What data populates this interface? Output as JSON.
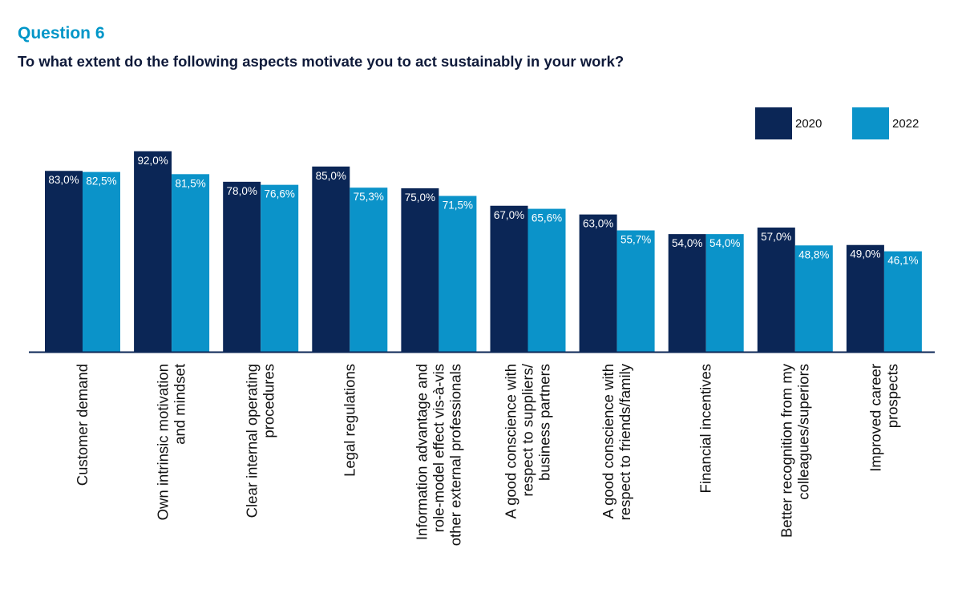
{
  "header": {
    "question_label": "Question 6",
    "question_text": "To what extent do the following aspects motivate you to act sustainably in your work?"
  },
  "colors": {
    "series_2020": "#0b2656",
    "series_2022": "#0b93c9",
    "label_text": "#ffffff",
    "axis": "#0b2656",
    "category_text": "#111111"
  },
  "chart_data": {
    "type": "bar",
    "title": "To what extent do the following aspects motivate you to act sustainably in your work?",
    "xlabel": "",
    "ylabel": "",
    "ylim": [
      0,
      100
    ],
    "grid": false,
    "legend_position": "top-right",
    "categories": [
      [
        "Customer demand"
      ],
      [
        "Own intrinsic motivation",
        "and mindset"
      ],
      [
        "Clear internal operating",
        "procedures"
      ],
      [
        "Legal regulations"
      ],
      [
        "Information advantage and",
        "role-model effect vis-à-vis",
        "other external professionals"
      ],
      [
        "A good conscience with",
        "respect to suppliers/",
        "business partners"
      ],
      [
        "A good conscience with",
        "respect to friends/family"
      ],
      [
        "Financial incentives"
      ],
      [
        "Better recognition from my",
        "colleagues/superiors"
      ],
      [
        "Improved career",
        "prospects"
      ]
    ],
    "series": [
      {
        "name": "2020",
        "values": [
          83.0,
          92.0,
          78.0,
          85.0,
          75.0,
          67.0,
          63.0,
          54.0,
          57.0,
          49.0
        ],
        "labels": [
          "83,0%",
          "92,0%",
          "78,0%",
          "85,0%",
          "75,0%",
          "67,0%",
          "63,0%",
          "54,0%",
          "57,0%",
          "49,0%"
        ]
      },
      {
        "name": "2022",
        "values": [
          82.5,
          81.5,
          76.6,
          75.3,
          71.5,
          65.6,
          55.7,
          54.0,
          48.8,
          46.1
        ],
        "labels": [
          "82,5%",
          "81,5%",
          "76,6%",
          "75,3%",
          "71,5%",
          "65,6%",
          "55,7%",
          "54,0%",
          "48,8%",
          "46,1%"
        ]
      }
    ]
  }
}
